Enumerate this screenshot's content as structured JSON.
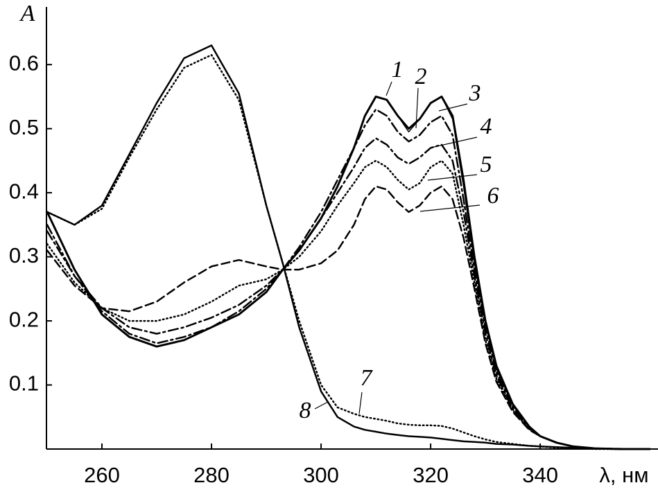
{
  "chart_data": {
    "type": "line",
    "y_label": "A",
    "x_label": "λ, нм",
    "xlim": [
      250,
      361.5
    ],
    "ylim": [
      0,
      0.69
    ],
    "xticks": [
      260,
      280,
      300,
      320,
      340
    ],
    "yticks": [
      0.1,
      0.2,
      0.3,
      0.4,
      0.5,
      0.6
    ],
    "x": [
      250,
      255,
      260,
      265,
      270,
      275,
      280,
      285,
      290,
      293,
      296,
      300,
      303,
      306,
      308,
      310,
      312,
      314,
      316,
      318,
      320,
      322,
      324,
      326,
      328,
      330,
      332,
      335,
      338,
      340,
      343,
      346,
      350,
      355,
      360
    ],
    "series": [
      {
        "name": "1",
        "color": "#000",
        "dash": "solid",
        "width": 3,
        "values": [
          0.37,
          0.28,
          0.21,
          0.175,
          0.16,
          0.17,
          0.19,
          0.21,
          0.245,
          0.28,
          0.31,
          0.36,
          0.41,
          0.47,
          0.52,
          0.55,
          0.545,
          0.52,
          0.5,
          0.515,
          0.54,
          0.55,
          0.52,
          0.42,
          0.3,
          0.2,
          0.13,
          0.07,
          0.035,
          0.02,
          0.01,
          0.004,
          0.001,
          0,
          0
        ]
      },
      {
        "name": "2",
        "color": "#000",
        "dash": "solid",
        "width": 1.5,
        "values": [
          0.37,
          0.28,
          0.21,
          0.175,
          0.16,
          0.17,
          0.19,
          0.21,
          0.245,
          0.28,
          0.31,
          0.36,
          0.41,
          0.47,
          0.52,
          0.55,
          0.545,
          0.52,
          0.495,
          0.515,
          0.54,
          0.55,
          0.515,
          0.41,
          0.29,
          0.195,
          0.125,
          0.068,
          0.034,
          0.02,
          0.01,
          0.004,
          0.001,
          0,
          0
        ]
      },
      {
        "name": "3",
        "color": "#000",
        "dash": "dashdot",
        "width": 2.5,
        "values": [
          0.35,
          0.27,
          0.215,
          0.18,
          0.165,
          0.175,
          0.19,
          0.215,
          0.25,
          0.28,
          0.315,
          0.37,
          0.42,
          0.47,
          0.505,
          0.53,
          0.52,
          0.495,
          0.48,
          0.49,
          0.51,
          0.52,
          0.49,
          0.39,
          0.28,
          0.19,
          0.12,
          0.065,
          0.033,
          0.02,
          0.01,
          0.004,
          0.001,
          0,
          0
        ]
      },
      {
        "name": "4",
        "color": "#000",
        "dash": "dashdot",
        "width": 2.5,
        "values": [
          0.34,
          0.27,
          0.22,
          0.19,
          0.18,
          0.19,
          0.205,
          0.225,
          0.255,
          0.28,
          0.31,
          0.36,
          0.4,
          0.44,
          0.47,
          0.485,
          0.475,
          0.455,
          0.445,
          0.455,
          0.47,
          0.475,
          0.45,
          0.37,
          0.27,
          0.18,
          0.115,
          0.062,
          0.032,
          0.02,
          0.01,
          0.004,
          0.001,
          0,
          0
        ]
      },
      {
        "name": "5",
        "color": "#000",
        "dash": "dotted",
        "width": 2.5,
        "values": [
          0.32,
          0.26,
          0.22,
          0.2,
          0.2,
          0.21,
          0.23,
          0.255,
          0.265,
          0.28,
          0.3,
          0.34,
          0.38,
          0.415,
          0.44,
          0.45,
          0.44,
          0.42,
          0.405,
          0.415,
          0.44,
          0.45,
          0.43,
          0.35,
          0.26,
          0.17,
          0.11,
          0.06,
          0.031,
          0.02,
          0.01,
          0.004,
          0.001,
          0,
          0
        ]
      },
      {
        "name": "6",
        "color": "#000",
        "dash": "dashed",
        "width": 2.5,
        "values": [
          0.31,
          0.255,
          0.22,
          0.215,
          0.23,
          0.26,
          0.285,
          0.295,
          0.285,
          0.28,
          0.28,
          0.29,
          0.31,
          0.35,
          0.39,
          0.41,
          0.405,
          0.385,
          0.37,
          0.38,
          0.4,
          0.41,
          0.39,
          0.33,
          0.25,
          0.165,
          0.105,
          0.058,
          0.03,
          0.02,
          0.01,
          0.004,
          0.001,
          0,
          0
        ]
      },
      {
        "name": "7",
        "color": "#000",
        "dash": "dotted",
        "width": 2.5,
        "values": [
          0.37,
          0.35,
          0.375,
          0.455,
          0.53,
          0.595,
          0.615,
          0.545,
          0.38,
          0.29,
          0.2,
          0.1,
          0.065,
          0.055,
          0.05,
          0.047,
          0.044,
          0.04,
          0.038,
          0.037,
          0.037,
          0.036,
          0.032,
          0.026,
          0.02,
          0.015,
          0.011,
          0.008,
          0.005,
          0.004,
          0.002,
          0.001,
          0,
          0,
          0
        ]
      },
      {
        "name": "8",
        "color": "#000",
        "dash": "solid",
        "width": 2.5,
        "values": [
          0.37,
          0.35,
          0.38,
          0.46,
          0.54,
          0.61,
          0.63,
          0.555,
          0.38,
          0.29,
          0.19,
          0.09,
          0.05,
          0.035,
          0.03,
          0.027,
          0.024,
          0.022,
          0.02,
          0.019,
          0.018,
          0.016,
          0.014,
          0.012,
          0.011,
          0.01,
          0.008,
          0.007,
          0.005,
          0.004,
          0.003,
          0.002,
          0.001,
          0,
          0
        ]
      }
    ]
  }
}
